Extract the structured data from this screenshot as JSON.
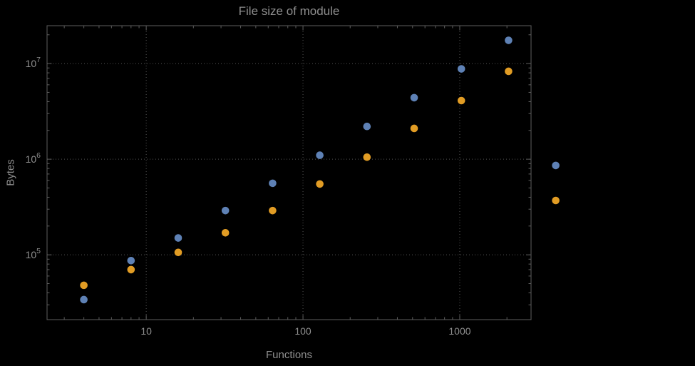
{
  "page": {
    "background": "#000000"
  },
  "chart_data": {
    "type": "scatter",
    "title": "File size of module",
    "xlabel": "Functions",
    "ylabel": "Bytes",
    "x_scale": "log",
    "y_scale": "log",
    "xlim": [
      2.33,
      2850
    ],
    "ylim": [
      21000,
      24900000
    ],
    "grid": "dotted lines at decade ticks only",
    "legend": "none",
    "x": [
      4,
      8,
      16,
      32,
      64,
      128,
      256,
      512,
      1024,
      2048,
      4096
    ],
    "series": [
      {
        "name": "series-1-blue",
        "color": "#5e81b5",
        "values": [
          34000,
          87000,
          150000,
          290000,
          560000,
          1100000,
          2200000,
          4400000,
          8800000,
          17500000,
          860000
        ]
      },
      {
        "name": "series-2-orange",
        "color": "#e19c24",
        "values": [
          48000,
          70000,
          106000,
          170000,
          290000,
          550000,
          1050000,
          2100000,
          4100000,
          8300000,
          370000
        ]
      }
    ],
    "x_ticks": [
      {
        "value": 10,
        "label": "10"
      },
      {
        "value": 100,
        "label": "100"
      },
      {
        "value": 1000,
        "label": "1000"
      }
    ],
    "y_ticks": [
      {
        "value": 100000,
        "base": "10",
        "exp": "5"
      },
      {
        "value": 1000000,
        "base": "10",
        "exp": "6"
      },
      {
        "value": 10000000,
        "base": "10",
        "exp": "7"
      }
    ],
    "frame_color": "#5e5e5e",
    "grid_color": "#545454",
    "text_color": "#8f8f8f"
  }
}
